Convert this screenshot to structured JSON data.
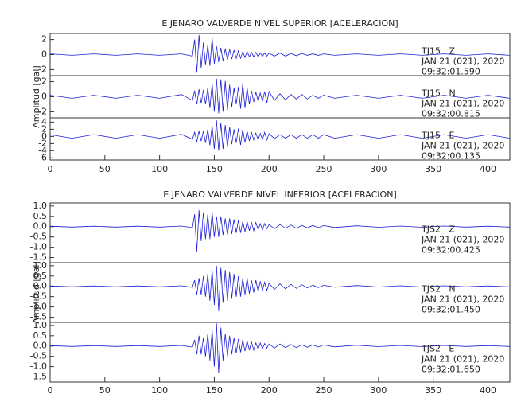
{
  "chart_data": [
    {
      "type": "line",
      "title": "E JENARO VALVERDE NIVEL SUPERIOR [ACELERACION]",
      "y_label": "Amplitud [gal]",
      "xlim": [
        0,
        420
      ],
      "xticks": [
        0,
        50,
        100,
        150,
        200,
        250,
        300,
        350,
        400
      ],
      "x": [
        0,
        20,
        40,
        60,
        80,
        100,
        120,
        130,
        132,
        134,
        136,
        138,
        140,
        142,
        144,
        146,
        148,
        150,
        152,
        154,
        156,
        158,
        160,
        162,
        164,
        166,
        168,
        170,
        172,
        174,
        176,
        178,
        180,
        182,
        184,
        186,
        188,
        190,
        192,
        194,
        196,
        198,
        200,
        205,
        210,
        215,
        220,
        225,
        230,
        235,
        240,
        245,
        250,
        260,
        280,
        300,
        320,
        340,
        360,
        380,
        400,
        420
      ],
      "panels": [
        {
          "color": "#1f1fd6",
          "ylim": [
            -2.8,
            2.8
          ],
          "yticks": [
            2,
            0,
            -2
          ],
          "annotation": [
            "TJ15   Z",
            "JAN 21 (021), 2020",
            "09:32:01.590"
          ],
          "values": [
            0.1,
            -0.1,
            0.1,
            -0.1,
            0.1,
            -0.1,
            0.1,
            -0.2,
            2.0,
            -2.4,
            2.6,
            -1.8,
            1.6,
            -1.4,
            1.3,
            -1.5,
            2.2,
            -1.2,
            1.1,
            -1.0,
            0.9,
            -0.9,
            0.8,
            -0.7,
            0.7,
            -0.6,
            0.6,
            -0.5,
            0.5,
            -0.5,
            0.4,
            -0.4,
            0.4,
            -0.3,
            0.3,
            -0.3,
            0.3,
            -0.3,
            0.2,
            -0.2,
            0.2,
            -0.2,
            0.2,
            -0.2,
            0.2,
            -0.2,
            0.15,
            -0.15,
            0.15,
            -0.1,
            0.1,
            -0.1,
            0.1,
            -0.1,
            0.1,
            -0.1,
            0.1,
            -0.1,
            0.1,
            -0.1,
            0.1,
            -0.1
          ]
        },
        {
          "color": "#1f1fd6",
          "ylim": [
            -2.8,
            2.8
          ],
          "yticks": [
            2,
            0,
            -2
          ],
          "annotation": [
            "TJ15   N",
            "JAN 21 (021), 2020",
            "09:32:00.815"
          ],
          "values": [
            0.2,
            -0.2,
            0.2,
            -0.2,
            0.2,
            -0.2,
            0.3,
            -0.5,
            0.8,
            -1.0,
            1.0,
            -0.9,
            0.9,
            -1.0,
            1.2,
            -1.5,
            1.8,
            -2.0,
            2.4,
            -2.2,
            2.3,
            -2.0,
            2.1,
            -1.8,
            1.6,
            -1.4,
            1.2,
            -1.0,
            1.3,
            -1.6,
            1.8,
            -1.5,
            1.2,
            -1.0,
            0.8,
            -0.7,
            0.6,
            -0.6,
            0.5,
            -0.6,
            0.7,
            -0.8,
            0.7,
            -0.5,
            0.4,
            -0.4,
            0.3,
            -0.3,
            0.3,
            -0.3,
            0.2,
            -0.2,
            0.2,
            -0.2,
            0.2,
            -0.2,
            0.2,
            -0.2,
            0.2,
            -0.2,
            0.2,
            -0.2
          ]
        },
        {
          "color": "#1f1fd6",
          "ylim": [
            -6.6,
            5.2
          ],
          "yticks": [
            4,
            2,
            0,
            -2,
            -4,
            -6
          ],
          "annotation": [
            "TJ15   E",
            "JAN 21 (021), 2020",
            "09:32:00.135"
          ],
          "values": [
            0.5,
            -0.5,
            0.5,
            -0.5,
            0.5,
            -0.5,
            0.6,
            -0.8,
            1.2,
            -1.5,
            1.5,
            -1.3,
            1.5,
            -1.8,
            2.0,
            -2.5,
            3.0,
            -3.5,
            4.5,
            -4.0,
            3.8,
            -3.5,
            3.2,
            -3.0,
            2.6,
            -2.2,
            2.0,
            -1.8,
            2.2,
            -2.4,
            2.0,
            -1.7,
            1.5,
            -1.3,
            1.1,
            -1.0,
            0.9,
            -0.9,
            0.8,
            -0.8,
            1.1,
            -1.0,
            0.8,
            -0.6,
            0.5,
            -0.5,
            0.5,
            -0.5,
            0.5,
            -0.5,
            0.5,
            -0.5,
            0.5,
            -0.5,
            0.5,
            -0.5,
            0.5,
            -0.5,
            0.5,
            -0.5,
            0.5,
            -0.5
          ]
        }
      ]
    },
    {
      "type": "line",
      "title": "E JENARO VALVERDE NIVEL INFERIOR [ACELERACION]",
      "y_label": "Amplitud [gal]",
      "xlim": [
        0,
        420
      ],
      "xticks": [
        0,
        50,
        100,
        150,
        200,
        250,
        300,
        350,
        400
      ],
      "x": [
        0,
        20,
        40,
        60,
        80,
        100,
        120,
        130,
        132,
        134,
        136,
        138,
        140,
        142,
        144,
        146,
        148,
        150,
        152,
        154,
        156,
        158,
        160,
        162,
        164,
        166,
        168,
        170,
        172,
        174,
        176,
        178,
        180,
        182,
        184,
        186,
        188,
        190,
        192,
        194,
        196,
        198,
        200,
        205,
        210,
        215,
        220,
        225,
        230,
        235,
        240,
        245,
        250,
        260,
        280,
        300,
        320,
        340,
        360,
        380,
        400,
        420
      ],
      "panels": [
        {
          "color": "#1f1fd6",
          "ylim": [
            -1.75,
            1.15
          ],
          "yticks": [
            {
              "value": 1,
              "label": "1.0"
            },
            0.5,
            {
              "value": 0,
              "label": "0.0"
            },
            -0.5,
            {
              "value": -1,
              "label": "-1.0"
            },
            -1.5
          ],
          "annotation": [
            "TJS2   Z",
            "JAN 21 (021), 2020",
            "09:32:00.425"
          ],
          "values": [
            0.02,
            -0.02,
            0.02,
            -0.02,
            0.02,
            -0.02,
            0.03,
            -0.05,
            0.6,
            -1.2,
            0.8,
            -0.7,
            0.7,
            -0.6,
            0.6,
            -0.6,
            0.7,
            -0.5,
            0.5,
            -0.5,
            0.5,
            -0.4,
            0.4,
            -0.4,
            0.4,
            -0.35,
            0.35,
            -0.3,
            0.3,
            -0.3,
            0.25,
            -0.25,
            0.25,
            -0.2,
            0.2,
            -0.2,
            0.2,
            -0.15,
            0.15,
            -0.15,
            0.15,
            -0.1,
            0.1,
            -0.1,
            0.1,
            -0.08,
            0.08,
            -0.08,
            0.06,
            -0.06,
            0.06,
            -0.05,
            0.05,
            -0.04,
            0.04,
            -0.03,
            0.03,
            -0.03,
            0.03,
            -0.02,
            0.02,
            -0.02
          ]
        },
        {
          "color": "#1f1fd6",
          "ylim": [
            -1.75,
            1.15
          ],
          "yticks": [
            {
              "value": 1,
              "label": "1.0"
            },
            0.5,
            {
              "value": 0,
              "label": "0.0"
            },
            -0.5,
            {
              "value": -1,
              "label": "-1.0"
            },
            -1.5
          ],
          "annotation": [
            "TJS2   N",
            "JAN 21 (021), 2020",
            "09:32:01.450"
          ],
          "values": [
            0.02,
            -0.02,
            0.02,
            -0.02,
            0.02,
            -0.02,
            0.03,
            -0.05,
            0.3,
            -0.4,
            0.4,
            -0.4,
            0.5,
            -0.5,
            0.6,
            -0.7,
            0.8,
            -0.9,
            1.0,
            -1.2,
            0.9,
            -0.8,
            0.8,
            -0.7,
            0.7,
            -0.6,
            0.6,
            -0.5,
            0.5,
            -0.5,
            0.4,
            -0.4,
            0.4,
            -0.35,
            0.3,
            -0.3,
            0.3,
            -0.25,
            0.25,
            -0.2,
            0.2,
            -0.2,
            0.15,
            -0.15,
            0.12,
            -0.12,
            0.1,
            -0.1,
            0.08,
            -0.08,
            0.06,
            -0.06,
            0.05,
            -0.04,
            0.04,
            -0.03,
            0.03,
            -0.03,
            0.03,
            -0.02,
            0.02,
            -0.02
          ]
        },
        {
          "color": "#1f1fd6",
          "ylim": [
            -1.75,
            1.15
          ],
          "yticks": [
            {
              "value": 1,
              "label": "1.0"
            },
            0.5,
            {
              "value": 0,
              "label": "0.0"
            },
            -0.5,
            {
              "value": -1,
              "label": "-1.0"
            },
            -1.5
          ],
          "annotation": [
            "TJS2   E",
            "JAN 21 (021), 2020",
            "09:32:01.650"
          ],
          "values": [
            0.02,
            -0.02,
            0.02,
            -0.02,
            0.02,
            -0.02,
            0.03,
            -0.05,
            0.3,
            -0.4,
            0.5,
            -0.4,
            0.4,
            -0.5,
            0.6,
            -0.7,
            0.8,
            -1.0,
            1.1,
            -1.3,
            0.9,
            -0.7,
            0.6,
            -0.5,
            0.5,
            -0.4,
            0.4,
            -0.35,
            0.35,
            -0.3,
            0.3,
            -0.25,
            0.25,
            -0.2,
            0.2,
            -0.2,
            0.15,
            -0.15,
            0.15,
            -0.12,
            0.12,
            -0.1,
            0.1,
            -0.1,
            0.1,
            -0.08,
            0.08,
            -0.08,
            0.06,
            -0.06,
            0.06,
            -0.05,
            0.05,
            -0.04,
            0.04,
            -0.03,
            0.03,
            -0.03,
            0.03,
            -0.02,
            0.02,
            -0.02
          ]
        }
      ]
    }
  ]
}
